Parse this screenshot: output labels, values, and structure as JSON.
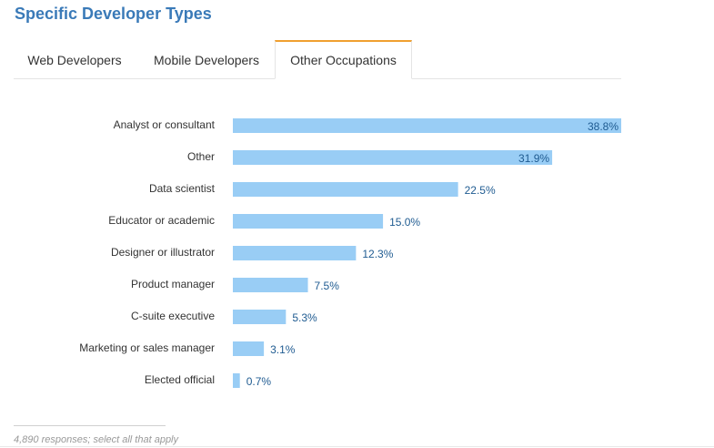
{
  "section_title": "Specific Developer Types",
  "tabs": [
    {
      "label": "Web Developers",
      "active": false
    },
    {
      "label": "Mobile Developers",
      "active": false
    },
    {
      "label": "Other Occupations",
      "active": true
    }
  ],
  "chart_data": {
    "type": "bar",
    "orientation": "horizontal",
    "categories": [
      "Analyst or consultant",
      "Other",
      "Data scientist",
      "Educator or academic",
      "Designer or illustrator",
      "Product manager",
      "C-suite executive",
      "Marketing or sales manager",
      "Elected official"
    ],
    "values": [
      38.8,
      31.9,
      22.5,
      15.0,
      12.3,
      7.5,
      5.3,
      3.1,
      0.7
    ],
    "value_labels": [
      "38.8%",
      "31.9%",
      "22.5%",
      "15.0%",
      "12.3%",
      "7.5%",
      "5.3%",
      "3.1%",
      "0.7%"
    ],
    "xlim": [
      0,
      38.8
    ],
    "grid": false,
    "bar_color": "#99cdf5",
    "label_color": "#1f5b91"
  },
  "footnote": "4,890 responses; select all that apply"
}
